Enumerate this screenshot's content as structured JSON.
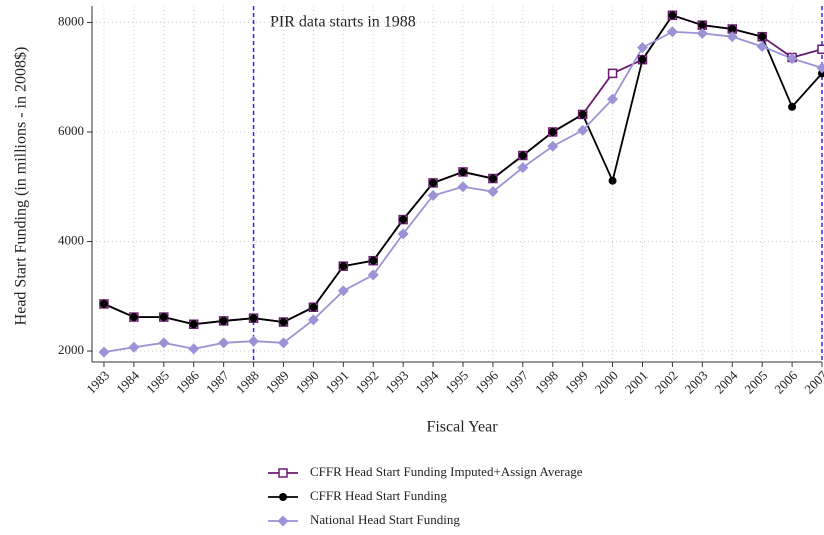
{
  "chart_data": {
    "type": "line",
    "x_label": "Fiscal Year",
    "y_label": "Head Start Funding (in millions - in 2008$)",
    "annotation": "PIR data starts in 1988",
    "x": [
      1983,
      1984,
      1985,
      1986,
      1987,
      1988,
      1989,
      1990,
      1991,
      1992,
      1993,
      1994,
      1995,
      1996,
      1997,
      1998,
      1999,
      2000,
      2001,
      2002,
      2003,
      2004,
      2005,
      2006,
      2007
    ],
    "series": [
      {
        "name": "CFFR Head Start Funding Imputed+Assign Average",
        "color": "#6a1b6e",
        "marker": "square-open",
        "values": [
          2860,
          2620,
          2620,
          2490,
          2550,
          2600,
          2530,
          2800,
          3550,
          3650,
          4400,
          5070,
          5270,
          5150,
          5570,
          6000,
          6320,
          7070,
          7320,
          8130,
          7950,
          7880,
          7740,
          7360,
          7510
        ]
      },
      {
        "name": "CFFR Head Start Funding",
        "color": "#000000",
        "marker": "circle",
        "values": [
          2860,
          2620,
          2620,
          2490,
          2550,
          2600,
          2530,
          2800,
          3550,
          3650,
          4400,
          5070,
          5270,
          5150,
          5570,
          6000,
          6320,
          5110,
          7320,
          8130,
          7950,
          7880,
          7740,
          6460,
          7070
        ]
      },
      {
        "name": "National Head Start Funding",
        "color": "#9b93d6",
        "marker": "diamond",
        "values": [
          1980,
          2070,
          2150,
          2040,
          2150,
          2180,
          2150,
          2570,
          3100,
          3390,
          4140,
          4840,
          5000,
          4910,
          5350,
          5740,
          6030,
          6600,
          7540,
          7830,
          7800,
          7740,
          7560,
          7340,
          7170
        ]
      }
    ],
    "xlim": [
      1982.6,
      2007
    ],
    "ylim": [
      1800,
      8300
    ],
    "xticks": [
      1983,
      1984,
      1985,
      1986,
      1987,
      1988,
      1989,
      1990,
      1991,
      1992,
      1993,
      1994,
      1995,
      1996,
      1997,
      1998,
      1999,
      2000,
      2001,
      2002,
      2003,
      2004,
      2005,
      2006,
      2007
    ],
    "yticks": [
      2000,
      4000,
      6000,
      8000
    ],
    "vlines": [
      1988,
      2007
    ],
    "vline_color": "#2a2af0",
    "grid": true,
    "legend": "bottom"
  }
}
